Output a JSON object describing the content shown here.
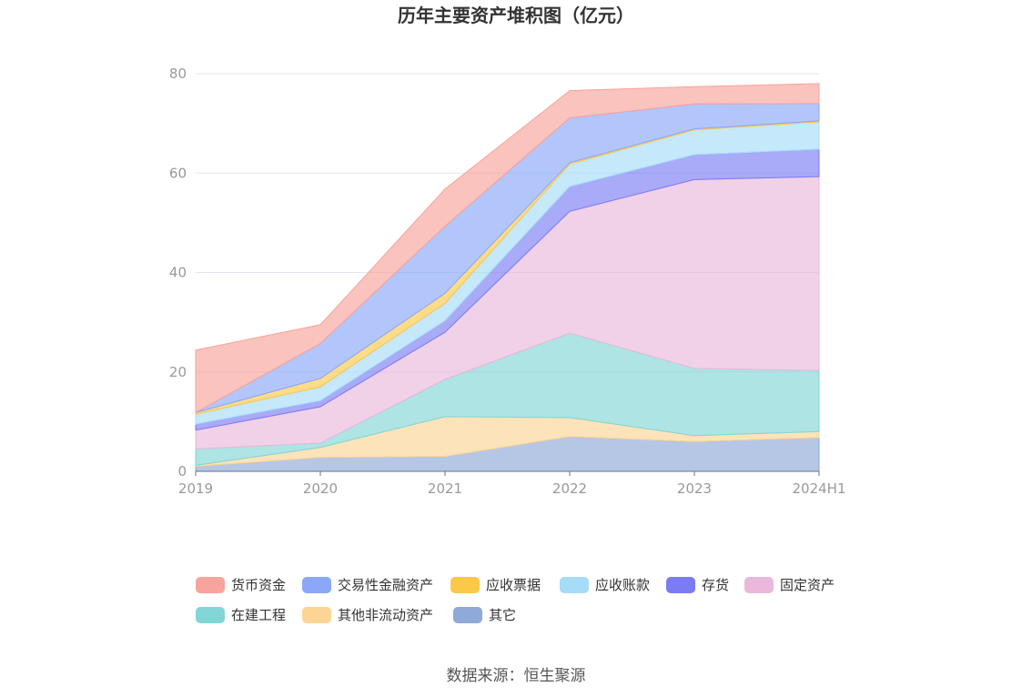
{
  "chart_data": {
    "type": "area",
    "stacked": true,
    "title": "历年主要资产堆积图（亿元）",
    "x": [
      "2019",
      "2020",
      "2021",
      "2022",
      "2023",
      "2024H1"
    ],
    "ylim": [
      0,
      80
    ],
    "yticks": [
      "0",
      "20",
      "40",
      "60",
      "80"
    ],
    "grid": true,
    "legend_position": "bottom",
    "series": [
      {
        "name": "其它",
        "color": "#8fa9d8",
        "values": [
          1.0,
          2.8,
          3.0,
          7.0,
          6.0,
          6.8
        ]
      },
      {
        "name": "其他非流动资产",
        "color": "#fcd494",
        "values": [
          0.2,
          2.0,
          8.0,
          3.8,
          1.2,
          1.2
        ]
      },
      {
        "name": "在建工程",
        "color": "#82d6d6",
        "values": [
          3.3,
          0.9,
          7.5,
          17.0,
          13.5,
          12.3
        ]
      },
      {
        "name": "固定资产",
        "color": "#eab8da",
        "values": [
          3.8,
          7.3,
          9.5,
          24.5,
          38.0,
          39.0
        ]
      },
      {
        "name": "存货",
        "color": "#7b7cf4",
        "values": [
          1.2,
          1.2,
          2.3,
          5.0,
          5.0,
          5.5
        ]
      },
      {
        "name": "应收账款",
        "color": "#a6dcf8",
        "values": [
          2.0,
          2.8,
          3.5,
          4.5,
          5.0,
          5.5
        ]
      },
      {
        "name": "应收票据",
        "color": "#fbc84a",
        "values": [
          0.3,
          1.7,
          2.0,
          0.3,
          0.2,
          0.2
        ]
      },
      {
        "name": "交易性金融资产",
        "color": "#8aa7f9",
        "values": [
          0.0,
          7.0,
          13.5,
          9.0,
          5.0,
          3.5
        ]
      },
      {
        "name": "货币资金",
        "color": "#f8a39b",
        "values": [
          12.6,
          3.8,
          7.5,
          5.5,
          3.5,
          4.0
        ]
      }
    ],
    "legend_order": [
      "货币资金",
      "交易性金融资产",
      "应收票据",
      "应收账款",
      "存货",
      "固定资产",
      "在建工程",
      "其他非流动资产",
      "其它"
    ]
  },
  "source": "数据来源：恒生聚源"
}
